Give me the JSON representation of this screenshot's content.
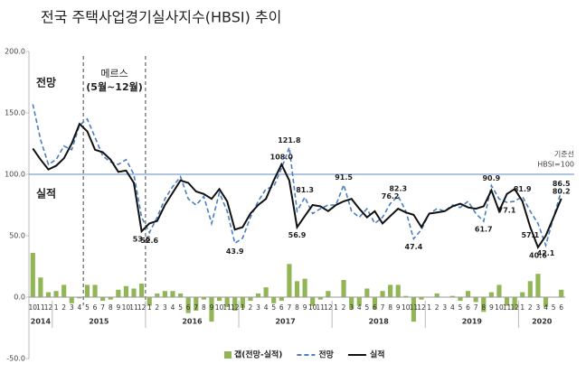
{
  "chart_data": {
    "type": "combo",
    "title": "전국 주택사업경기실사지수(HBSI) 추이",
    "categories": [
      "10",
      "11",
      "12",
      "1",
      "2",
      "3",
      "4",
      "5",
      "6",
      "7",
      "8",
      "9",
      "10",
      "11",
      "12",
      "1",
      "2",
      "3",
      "4",
      "5",
      "6",
      "7",
      "8",
      "9",
      "10",
      "11",
      "12",
      "1",
      "2",
      "3",
      "4",
      "5",
      "6",
      "7",
      "8",
      "9",
      "10",
      "11",
      "12",
      "1",
      "2",
      "3",
      "4",
      "5",
      "6",
      "7",
      "8",
      "9",
      "10",
      "11",
      "12",
      "1",
      "2",
      "3",
      "4",
      "5",
      "6",
      "7",
      "8",
      "9",
      "10",
      "11",
      "12",
      "1",
      "2",
      "3",
      "4",
      "5",
      "6"
    ],
    "years": [
      "2014",
      "2015",
      "2016",
      "2017",
      "2018",
      "2019",
      "2020"
    ],
    "ylim": [
      -50,
      200
    ],
    "yticks": [
      {
        "value": -50,
        "label": "-50.0"
      },
      {
        "value": 0,
        "label": "0.0"
      },
      {
        "value": 50,
        "label": "50.0"
      },
      {
        "value": 100,
        "label": "100.0"
      },
      {
        "value": 150,
        "label": "150.0"
      },
      {
        "value": 200,
        "label": "200.0"
      }
    ],
    "reference_line": {
      "value": 100,
      "label": "기준선",
      "sublabel": "HBSI=100",
      "color": "#7f9fd0"
    },
    "event": {
      "label": "메르스",
      "period": "(5월~12월)"
    },
    "annotations": [
      "전망",
      "실적"
    ],
    "series": [
      {
        "name": "갭(전망-실적)",
        "type": "bar",
        "color": "#92b556",
        "values": [
          36,
          16,
          4,
          5,
          10,
          -5,
          -1,
          10,
          10,
          -3,
          -2,
          6,
          9,
          7,
          11,
          -7,
          3,
          5,
          5,
          3,
          -13,
          -11,
          -2,
          -20,
          -3,
          -8,
          -11,
          -9,
          -3,
          3,
          8,
          -5,
          -3,
          27,
          13,
          15,
          -7,
          -2,
          5,
          0,
          14,
          -10,
          -7,
          7,
          -10,
          5,
          10,
          10,
          1,
          -20,
          -2,
          0,
          3,
          0,
          1,
          -3,
          5,
          -4,
          -12,
          4,
          10,
          -7,
          -10,
          4,
          13,
          19,
          -8,
          0,
          6
        ]
      },
      {
        "name": "전망",
        "type": "line",
        "dashed": true,
        "color": "#4a7fc1",
        "values": [
          157,
          128,
          108,
          112,
          123,
          120,
          140,
          145,
          130,
          115,
          110,
          108,
          112,
          100,
          65,
          52.6,
          65,
          80,
          90,
          98,
          80,
          75,
          82,
          60,
          85,
          70,
          43.9,
          48,
          65,
          78,
          88,
          90,
          105,
          121.8,
          70,
          81.3,
          68,
          72,
          75,
          75,
          91.5,
          70,
          65,
          72,
          60,
          65,
          76.2,
          82.3,
          70,
          47.4,
          55,
          68,
          72,
          70,
          75,
          73,
          78,
          68,
          61.7,
          90.9,
          80,
          77.1,
          78,
          81.9,
          70,
          60,
          42.1,
          65,
          86.5
        ],
        "value_labels": [
          null,
          null,
          null,
          null,
          null,
          null,
          null,
          null,
          null,
          null,
          null,
          null,
          null,
          null,
          null,
          "52.6",
          null,
          null,
          null,
          null,
          null,
          null,
          null,
          null,
          null,
          null,
          "43.9",
          null,
          null,
          null,
          null,
          null,
          null,
          "121.8",
          null,
          "81.3",
          null,
          null,
          null,
          null,
          "91.5",
          null,
          null,
          null,
          null,
          null,
          "76.2",
          "82.3",
          null,
          "47.4",
          null,
          null,
          null,
          null,
          null,
          null,
          null,
          null,
          "61.7",
          "90.9",
          null,
          "77.1",
          null,
          "81.9",
          null,
          null,
          "42.1",
          null,
          "86.5"
        ]
      },
      {
        "name": "실적",
        "type": "line",
        "dashed": false,
        "color": "#111111",
        "values": [
          121,
          112,
          104,
          107,
          113,
          125,
          141,
          135,
          120,
          118,
          112,
          102,
          103,
          93,
          53.6,
          60,
          62,
          75,
          85,
          95,
          93,
          86,
          84,
          80,
          88,
          78,
          55,
          57,
          68,
          75,
          80,
          95,
          108,
          95,
          56.9,
          66,
          75,
          74,
          70,
          75,
          78,
          80,
          72,
          65,
          70,
          60,
          66,
          72,
          69,
          67,
          57,
          68,
          69,
          70,
          74,
          76,
          73,
          72,
          74,
          87,
          70,
          84,
          88,
          78,
          57.1,
          40.6,
          50,
          65,
          80.2
        ],
        "value_labels": [
          null,
          null,
          null,
          null,
          null,
          null,
          null,
          null,
          null,
          null,
          null,
          null,
          null,
          null,
          "53.6",
          null,
          null,
          null,
          null,
          null,
          null,
          null,
          null,
          null,
          null,
          null,
          null,
          null,
          null,
          null,
          null,
          null,
          "108.0",
          null,
          "56.9",
          null,
          null,
          null,
          null,
          null,
          null,
          null,
          null,
          null,
          null,
          null,
          null,
          null,
          null,
          null,
          null,
          null,
          null,
          null,
          null,
          null,
          null,
          null,
          null,
          null,
          null,
          null,
          null,
          null,
          "57.1",
          "40.6",
          null,
          null,
          "80.2"
        ]
      }
    ]
  }
}
